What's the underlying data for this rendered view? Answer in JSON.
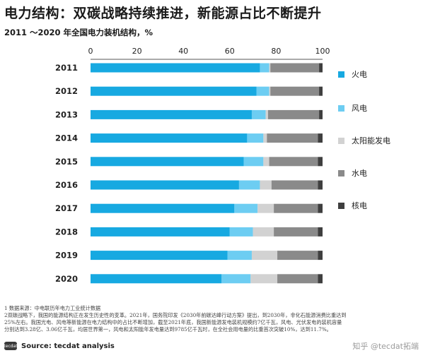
{
  "header": {
    "title": "电力结构：双碳战略持续推进，新能源占比不断提升",
    "subtitle": "2011 ～2020 年全国电力装机结构，%"
  },
  "chart_data": {
    "type": "bar",
    "orientation": "horizontal",
    "stacked": true,
    "categories": [
      "2011",
      "2012",
      "2013",
      "2014",
      "2015",
      "2016",
      "2017",
      "2018",
      "2019",
      "2020"
    ],
    "xlim": [
      0,
      100
    ],
    "xticks": [
      0,
      20,
      40,
      60,
      80,
      100
    ],
    "grid": false,
    "legend_position": "right",
    "series": [
      {
        "name": "火电",
        "color": "#17a9e1",
        "values": [
          73.0,
          71.5,
          69.5,
          67.5,
          66.0,
          64.0,
          62.0,
          60.0,
          59.0,
          56.5
        ]
      },
      {
        "name": "风电",
        "color": "#6dcdf2",
        "values": [
          4.0,
          5.5,
          6.0,
          7.0,
          8.5,
          9.0,
          10.0,
          10.0,
          10.5,
          12.5
        ]
      },
      {
        "name": "太阳能发电",
        "color": "#d2d2d2",
        "values": [
          0.5,
          0.5,
          1.0,
          1.5,
          2.5,
          5.0,
          7.0,
          9.0,
          11.0,
          11.5
        ]
      },
      {
        "name": "水电",
        "color": "#8a8a8a",
        "values": [
          21.0,
          21.0,
          22.0,
          22.0,
          21.0,
          20.0,
          19.0,
          19.0,
          17.5,
          17.5
        ]
      },
      {
        "name": "核电",
        "color": "#3f3f3f",
        "values": [
          1.5,
          1.5,
          1.5,
          2.0,
          2.0,
          2.0,
          2.0,
          2.0,
          2.0,
          2.0
        ]
      }
    ]
  },
  "notes": [
    "1 数据来源：中电联历年电力工业统计数据",
    "2双碳战略下，我国的能源结构正在发生历史性的变革。2021年，国务院印发《2030年前碳达峰行动方案》提出，到2030年，非化石能源消费比重达到",
    "25%左右。我国光电、风电等新能源在电力结构中的占比不断增加，截至2021年底，我国新能源发电装机规模约7亿千瓦，风电、光伏发电的装机容量",
    "分别达到3.28亿、3.06亿千瓦，均居世界第一，风电和太阳能年发电量达到9785亿千瓦时，在全社会用电量的比重首次突破10%，达到11.7%。"
  ],
  "footer": {
    "logo_text": "tecdat",
    "source": "Source: tecdat analysis",
    "watermark": "知乎 @tecdat拓端"
  }
}
